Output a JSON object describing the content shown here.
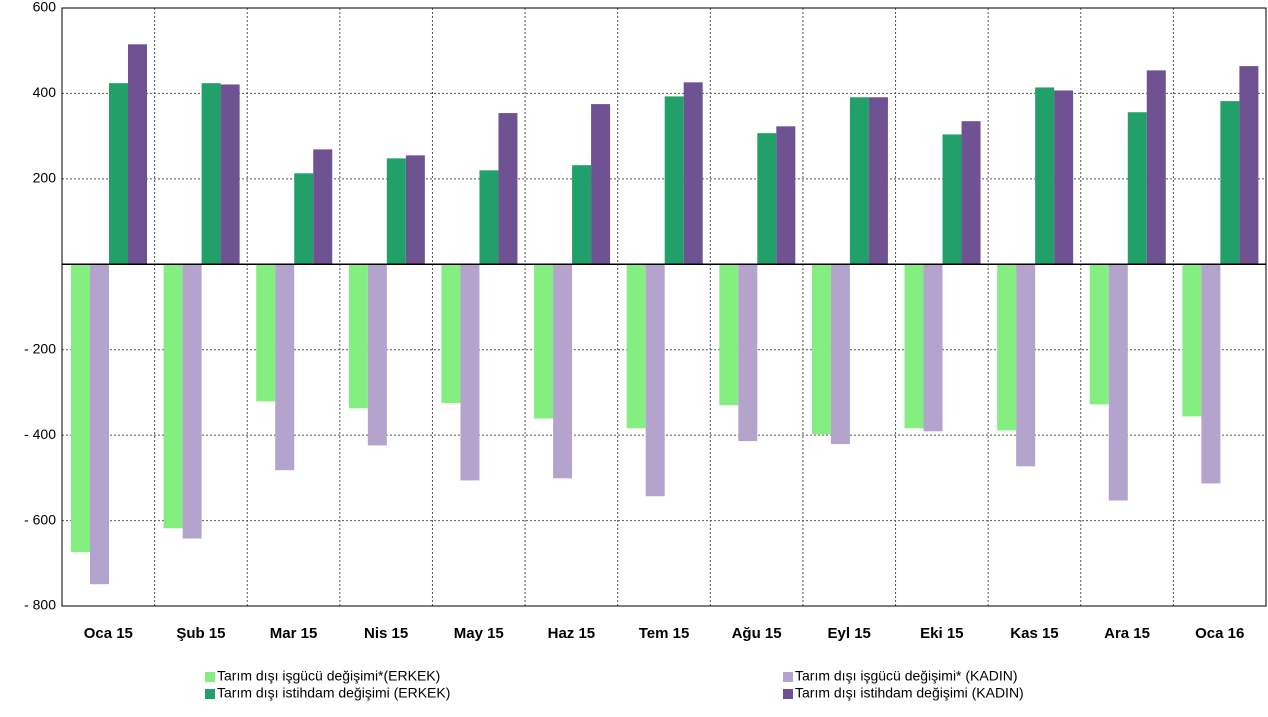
{
  "chart_data": {
    "type": "bar",
    "categories": [
      "Oca 15",
      "Şub 15",
      "Mar 15",
      "Nis 15",
      "May 15",
      "Haz 15",
      "Tem 15",
      "Ağu 15",
      "Eyl 15",
      "Eki 15",
      "Kas 15",
      "Ara 15",
      "Oca 16"
    ],
    "series": [
      {
        "name": "Tarım dışı işgücü değişimi*(ERKEK)",
        "color": "#84ef80",
        "values": [
          -674,
          -618,
          -321,
          -337,
          -325,
          -361,
          -384,
          -330,
          -398,
          -384,
          -389,
          -328,
          -356
        ]
      },
      {
        "name": "Tarım dışı işgücü değişimi* (KADIN)",
        "color": "#b3a3cd",
        "values": [
          -749,
          -642,
          -482,
          -424,
          -506,
          -501,
          -543,
          -414,
          -421,
          -391,
          -473,
          -553,
          -513
        ]
      },
      {
        "name": "Tarım dışı istihdam değişimi (ERKEK)",
        "color": "#21a06a",
        "values": [
          424,
          424,
          213,
          248,
          220,
          232,
          393,
          307,
          391,
          304,
          414,
          356,
          382
        ]
      },
      {
        "name": "Tarım dışı istihdam değişimi (KADIN)",
        "color": "#6e5291",
        "values": [
          515,
          421,
          269,
          255,
          354,
          375,
          426,
          323,
          391,
          335,
          407,
          454,
          464
        ]
      }
    ],
    "ylim": [
      -800,
      600
    ],
    "yticks": [
      600,
      400,
      200,
      {
        "value": -200,
        "label": "- 200"
      },
      {
        "value": -400,
        "label": "- 400"
      },
      {
        "value": -600,
        "label": "- 600"
      },
      {
        "value": -800,
        "label": "- 800"
      }
    ],
    "grid": true,
    "legend": "bottom"
  }
}
